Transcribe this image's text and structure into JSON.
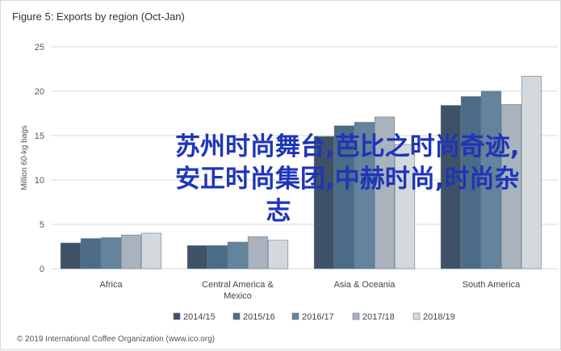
{
  "title": "Figure 5: Exports by region (Oct-Jan)",
  "watermark_lines": [
    "苏州时尚舞台,芭比之时尚奇迹,",
    "安正时尚集团,中赫时尚,时尚杂",
    "志"
  ],
  "source": "© 2019 International Coffee Organization (www.ico.org)",
  "chart_data": {
    "type": "bar",
    "title": "Figure 5: Exports by region (Oct-Jan)",
    "xlabel": "",
    "ylabel": "Million 60-kg bags",
    "ylim": [
      0,
      25
    ],
    "yticks": [
      0,
      5,
      10,
      15,
      20,
      25
    ],
    "grid": true,
    "legend_position": "bottom",
    "categories": [
      "Africa",
      "Central America & Mexico",
      "Asia & Oceania",
      "South America"
    ],
    "category_labels": [
      [
        "Africa"
      ],
      [
        "Central America &",
        "Mexico"
      ],
      [
        "Asia & Oceania"
      ],
      [
        "South America"
      ]
    ],
    "series": [
      {
        "name": "2014/15",
        "color": "#3f5166",
        "values": [
          2.9,
          2.6,
          14.9,
          18.4
        ]
      },
      {
        "name": "2015/16",
        "color": "#4b6b86",
        "values": [
          3.4,
          2.6,
          16.1,
          19.4
        ]
      },
      {
        "name": "2016/17",
        "color": "#64839c",
        "values": [
          3.5,
          3.0,
          16.5,
          20.0
        ]
      },
      {
        "name": "2017/18",
        "color": "#a8b3be",
        "values": [
          3.8,
          3.6,
          17.1,
          18.5
        ]
      },
      {
        "name": "2018/19",
        "color": "#d4d9de",
        "values": [
          4.0,
          3.2,
          14.0,
          21.7
        ]
      }
    ]
  }
}
